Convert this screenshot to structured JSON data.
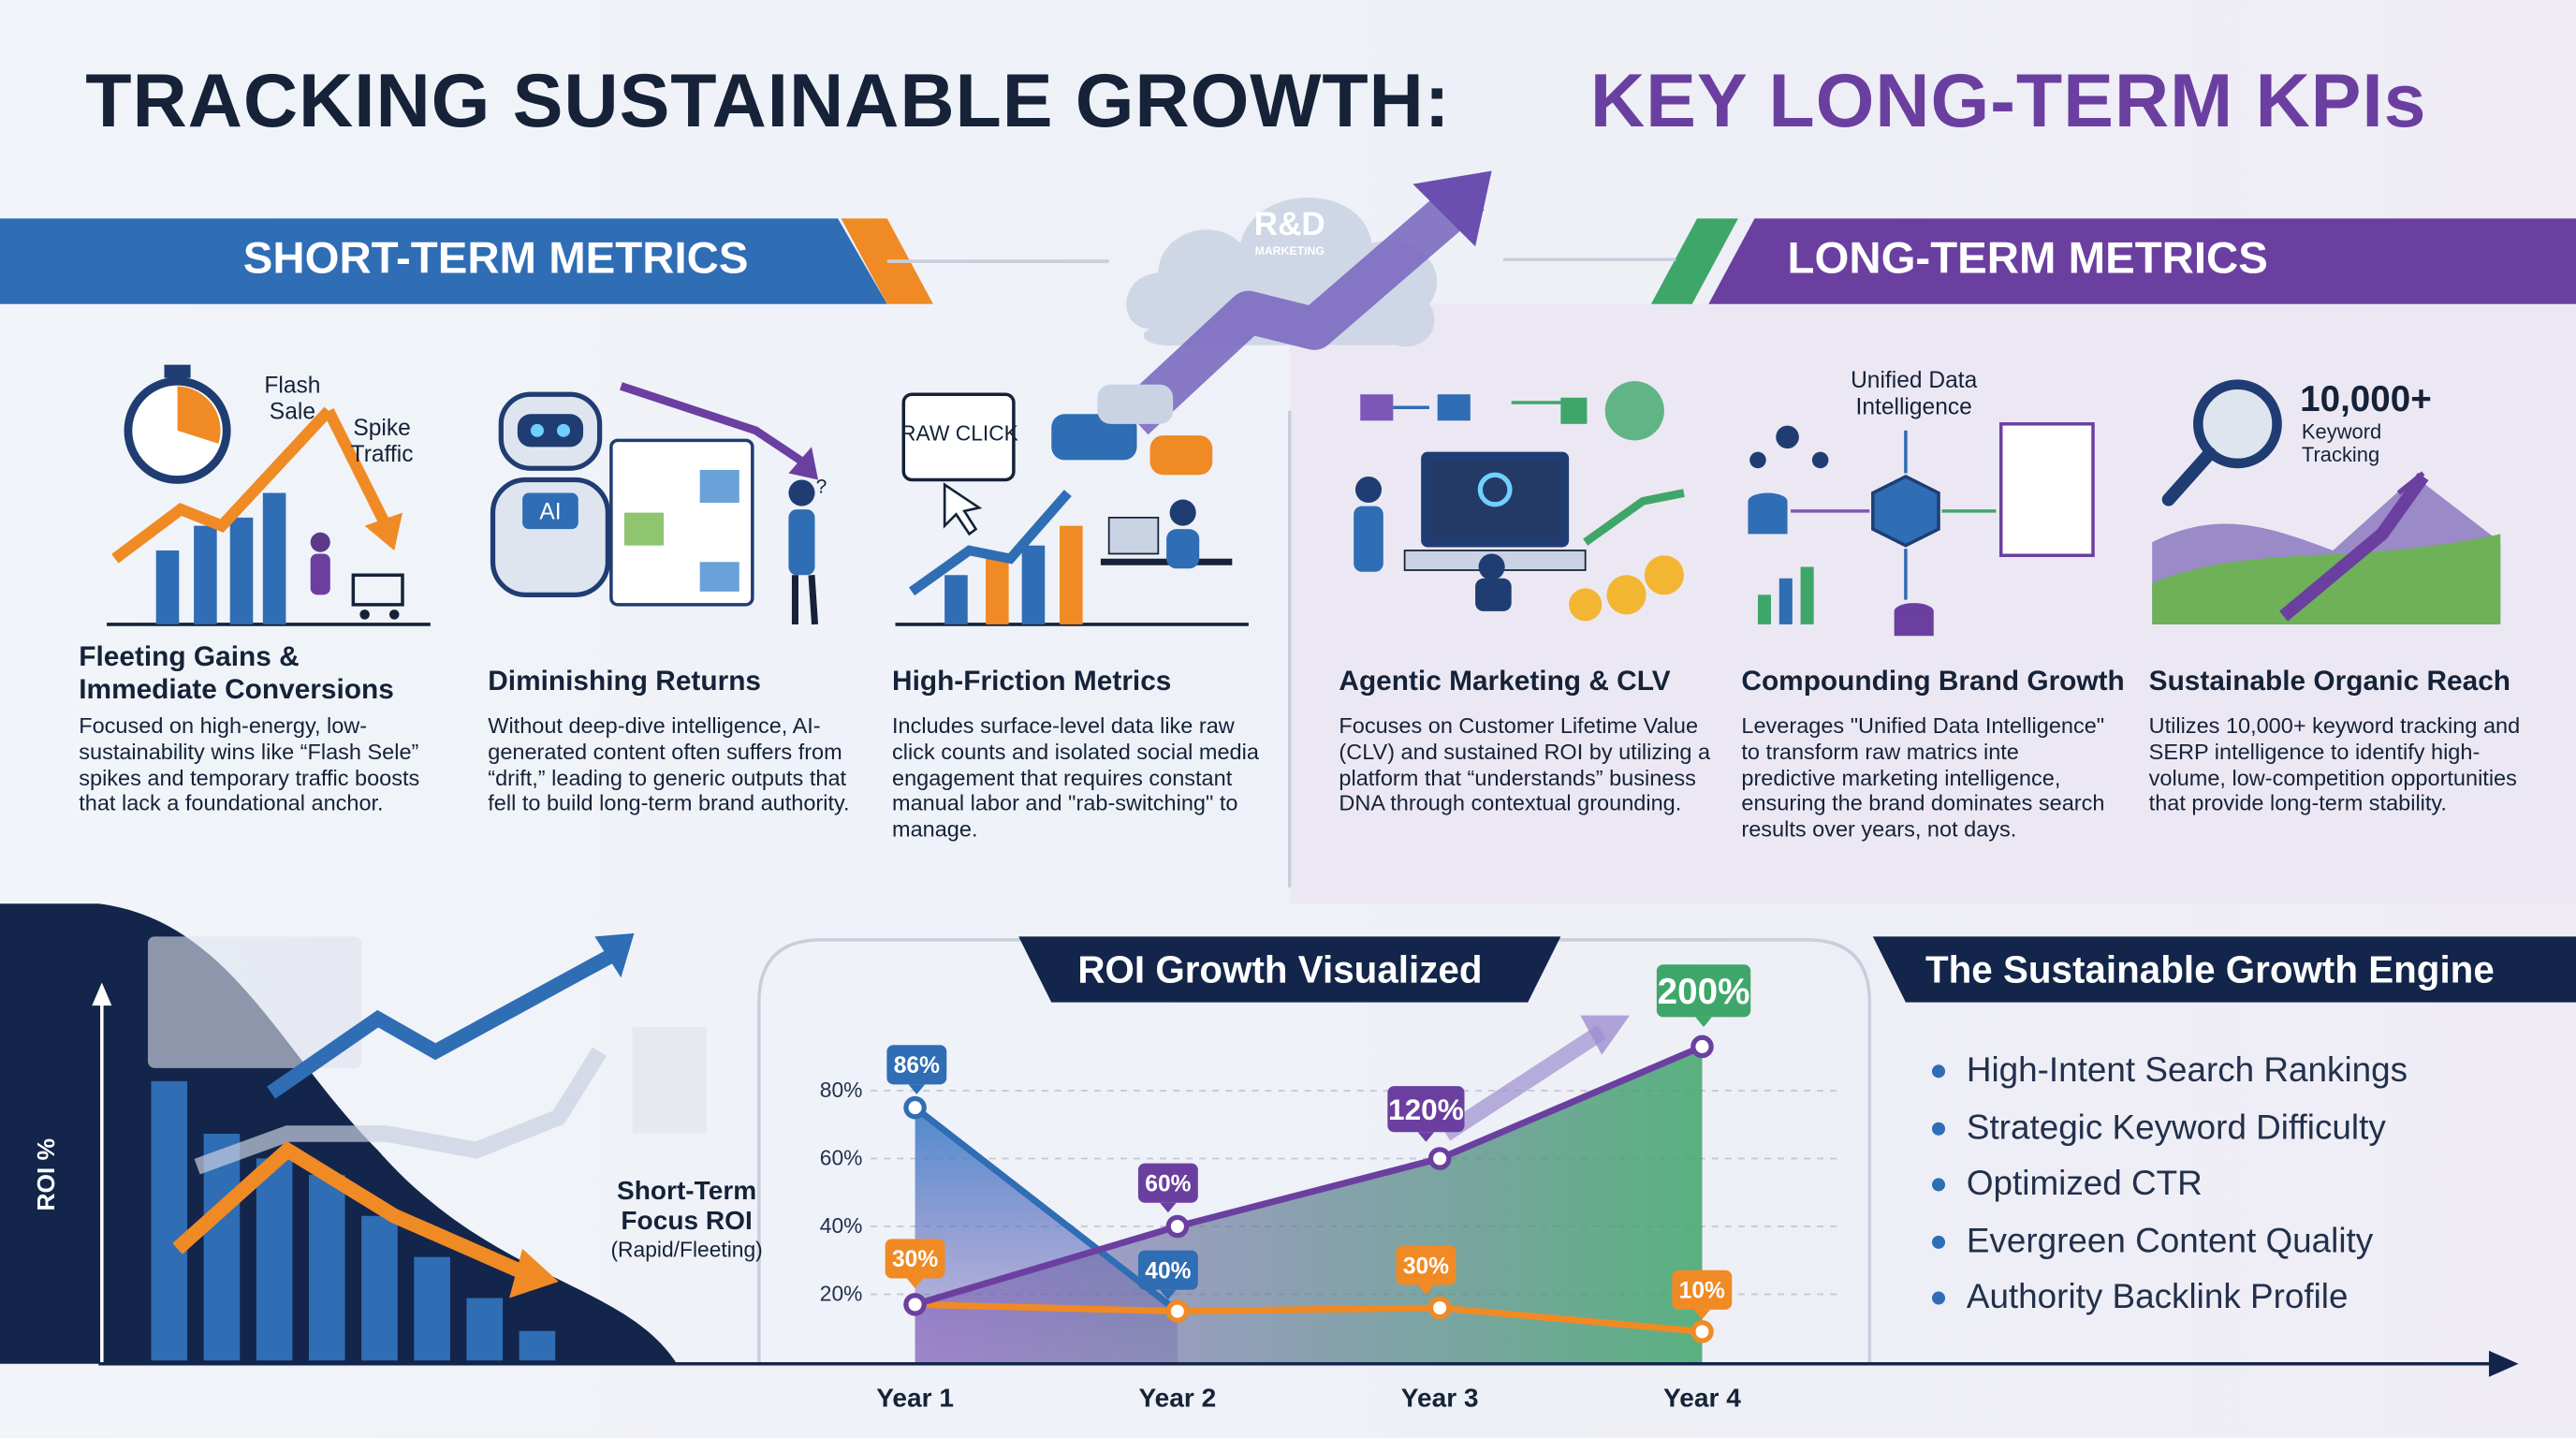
{
  "title": {
    "part1": "TRACKING SUSTAINABLE GROWTH:",
    "part2": "KEY LONG-TERM KPIs"
  },
  "logo": {
    "name": "R&D",
    "tagline": "MARKETING"
  },
  "short_term": {
    "heading": "SHORT-TERM METRICS",
    "cards": [
      {
        "labels": [
          "Flash Sale",
          "Spike Traffic"
        ],
        "title": "Fleeting Gains & Immediate Conversions",
        "body": "Focused on high-energy, low-sustainability wins like “Flash Sele” spikes and temporary traffic boosts that lack a foundational anchor."
      },
      {
        "labels": [
          "AI",
          "?"
        ],
        "title": "Diminishing Returns",
        "body": "Without deep-dive intelligence, AI-generated content often suffers from “drift,” leading to generic outputs that fell to build long-term brand authority."
      },
      {
        "labels": [
          "RAW CLICK"
        ],
        "title": "High-Friction Metrics",
        "body": "Includes surface-level data like raw click counts and isolated social media engagement that requires constant manual labor and \"rab-switching\" to manage."
      }
    ]
  },
  "long_term": {
    "heading": "LONG-TERM METRICS",
    "cards": [
      {
        "labels": [],
        "title": "Agentic Marketing & CLV",
        "body": "Focuses on Customer Lifetime Value (CLV) and sustained ROI by utilizing a platform that “understands” business DNA through contextual grounding."
      },
      {
        "labels": [
          "Unified Data Intelligence"
        ],
        "title": "Compounding Brand Growth",
        "body": "Leverages \"Unified Data Intelligence\" to transform raw matrics inte predictive marketing intelligence, ensuring the brand dominates search results over years, not days."
      },
      {
        "labels": [
          "10,000+",
          "Keyword Tracking"
        ],
        "title": "Sustainable Organic Reach",
        "body": "Utilizes 10,000+ keyword tracking and SERP intelligence to identify high-volume, low-competition opportunities that provide long-term stability."
      }
    ]
  },
  "roi_panel": {
    "axis_label": "ROI %",
    "caption": "Short-Term Focus ROI",
    "caption_note": "(Rapid/Fleeting)"
  },
  "chart_data": {
    "type": "line",
    "title": "ROI Growth Visualized",
    "categories": [
      "Year 1",
      "Year 2",
      "Year 3",
      "Year 4"
    ],
    "series": [
      {
        "color": "#2f6db5",
        "values": [
          75,
          15,
          null,
          null
        ]
      },
      {
        "color": "#f08a24",
        "values": [
          17,
          15,
          16,
          9
        ]
      },
      {
        "color": "#6b3fa0",
        "values": [
          17,
          40,
          60,
          93
        ]
      }
    ],
    "annotations": [
      "86%",
      "30%",
      "60%",
      "40%",
      "120%",
      "30%",
      "200%",
      "10%"
    ],
    "ylim": [
      0,
      100
    ],
    "yticks": [
      {
        "value": 20,
        "label": "20%"
      },
      {
        "value": 40,
        "label": "40%"
      },
      {
        "value": 60,
        "label": "60%"
      },
      {
        "value": 80,
        "label": "80%"
      }
    ],
    "grid": true
  },
  "growth_engine": {
    "title": "The Sustainable Growth Engine",
    "items": [
      "High-Intent Search Rankings",
      "Strategic Keyword Difficulty",
      "Optimized CTR",
      "Evergreen Content Quality",
      "Authority Backlink Profile"
    ]
  }
}
